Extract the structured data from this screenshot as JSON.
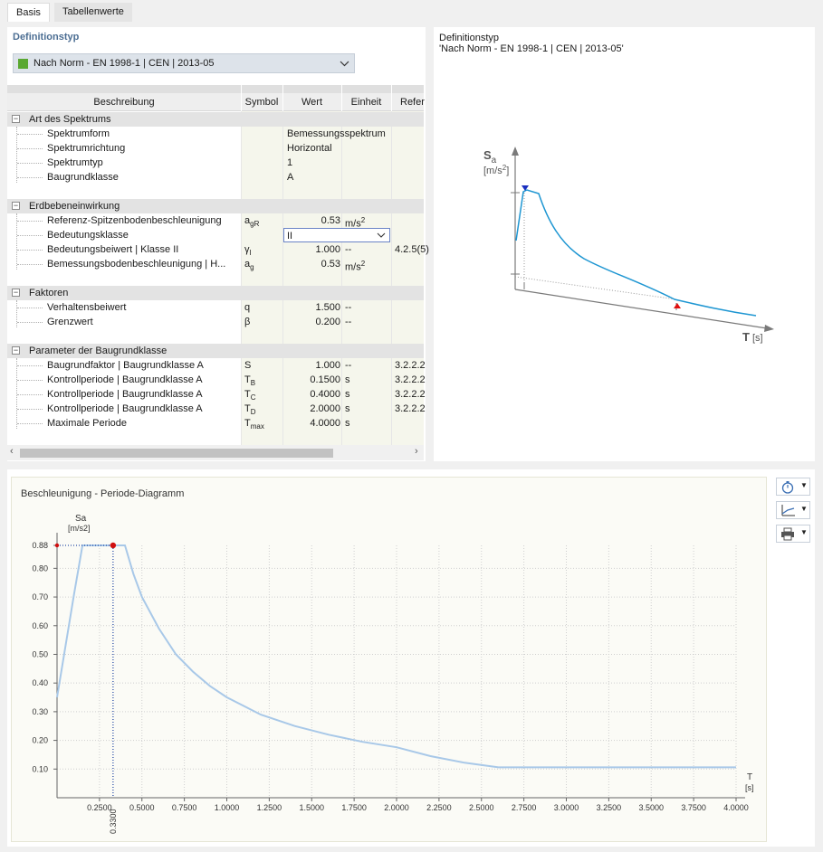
{
  "tabs": [
    {
      "label": "Basis"
    },
    {
      "label": "Tabellenwerte"
    }
  ],
  "left": {
    "title": "Definitionstyp",
    "dropdown_value": "Nach Norm - EN 1998-1 | CEN | 2013-05",
    "columns": {
      "desc": "Beschreibung",
      "sym": "Symbol",
      "val": "Wert",
      "unit": "Einheit",
      "ref": "Refer"
    },
    "groups": {
      "art": "Art des Spektrums",
      "erd": "Erdbebeneinwirkung",
      "fak": "Faktoren",
      "par": "Parameter der Baugrundklasse"
    },
    "rows": {
      "r1": {
        "desc": "Spektrumform",
        "val": "Bemessungsspektrum"
      },
      "r2": {
        "desc": "Spektrumrichtung",
        "val": "Horizontal"
      },
      "r3": {
        "desc": "Spektrumtyp",
        "val": "1"
      },
      "r4": {
        "desc": "Baugrundklasse",
        "val": "A"
      },
      "r5": {
        "desc": "Referenz-Spitzenbodenbeschleunigung",
        "sym": "a",
        "sym_sub": "gR",
        "val": "0.53",
        "unit": "m/s",
        "unit_sup": "2"
      },
      "r6": {
        "desc": "Bedeutungsklasse",
        "val": "II"
      },
      "r7": {
        "desc": "Bedeutungsbeiwert | Klasse II",
        "sym": "γ",
        "sym_sub": "I",
        "val": "1.000",
        "unit": "--",
        "ref": "4.2.5(5)"
      },
      "r8": {
        "desc": "Bemessungsbodenbeschleunigung | H...",
        "sym": "a",
        "sym_sub": "g",
        "val": "0.53",
        "unit": "m/s",
        "unit_sup": "2"
      },
      "r9": {
        "desc": "Verhaltensbeiwert",
        "sym": "q",
        "val": "1.500",
        "unit": "--"
      },
      "r10": {
        "desc": "Grenzwert",
        "sym": "β",
        "val": "0.200",
        "unit": "--"
      },
      "r11": {
        "desc": "Baugrundfaktor | Baugrundklasse A",
        "sym": "S",
        "val": "1.000",
        "unit": "--",
        "ref": "3.2.2.2"
      },
      "r12": {
        "desc": "Kontrollperiode | Baugrundklasse A",
        "sym": "T",
        "sym_sub": "B",
        "val": "0.1500",
        "unit": "s",
        "ref": "3.2.2.2"
      },
      "r13": {
        "desc": "Kontrollperiode | Baugrundklasse A",
        "sym": "T",
        "sym_sub": "C",
        "val": "0.4000",
        "unit": "s",
        "ref": "3.2.2.2"
      },
      "r14": {
        "desc": "Kontrollperiode | Baugrundklasse A",
        "sym": "T",
        "sym_sub": "D",
        "val": "2.0000",
        "unit": "s",
        "ref": "3.2.2.2"
      },
      "r15": {
        "desc": "Maximale Periode",
        "sym": "T",
        "sym_sub": "max",
        "val": "4.0000",
        "unit": "s"
      }
    }
  },
  "right": {
    "title": "Definitionstyp",
    "subtitle": "'Nach Norm - EN 1998-1 | CEN | 2013-05'",
    "sa_label": "S",
    "sa_sub": "a",
    "sa_unit": "[m/s",
    "sa_unit_sup": "2",
    "sa_unit_close": "]",
    "t_label": "T",
    "t_unit": "[s]",
    "accent": "#1e96d2"
  },
  "bottom": {
    "title": "Beschleunigung - Periode-Diagramm"
  },
  "chart_data": {
    "type": "line",
    "title": "Beschleunigung - Periode-Diagramm",
    "ylabel": "Sa",
    "yunit": "[m/s2]",
    "xlabel": "T",
    "xunit": "[s]",
    "xlim": [
      0,
      4.0
    ],
    "ylim": [
      0,
      0.88
    ],
    "xticks": [
      "0.2500",
      "0.5000",
      "0.7500",
      "1.0000",
      "1.2500",
      "1.5000",
      "1.7500",
      "2.0000",
      "2.2500",
      "2.5000",
      "2.7500",
      "3.0000",
      "3.2500",
      "3.5000",
      "3.7500",
      "4.0000"
    ],
    "xtick_values": [
      0.25,
      0.5,
      0.75,
      1.0,
      1.25,
      1.5,
      1.75,
      2.0,
      2.25,
      2.5,
      2.75,
      3.0,
      3.25,
      3.5,
      3.75,
      4.0
    ],
    "yticks": [
      "0.10",
      "0.20",
      "0.30",
      "0.40",
      "0.50",
      "0.60",
      "0.70",
      "0.80",
      "0.88"
    ],
    "ytick_values": [
      0.1,
      0.2,
      0.3,
      0.4,
      0.5,
      0.6,
      0.7,
      0.8,
      0.88
    ],
    "marker_x_label": "0.3300",
    "marker": {
      "x": 0.33,
      "y": 0.88
    },
    "grid": true,
    "series": [
      {
        "x": [
          0,
          0.05,
          0.1,
          0.15,
          0.2,
          0.25,
          0.3,
          0.35,
          0.4,
          0.45,
          0.5,
          0.6,
          0.7,
          0.8,
          0.9,
          1.0,
          1.2,
          1.4,
          1.6,
          1.8,
          2.0,
          2.2,
          2.4,
          2.6,
          2.8,
          3.0,
          3.2,
          3.4,
          3.6,
          3.8,
          4.0
        ],
        "values": [
          0.35,
          0.53,
          0.71,
          0.88,
          0.88,
          0.88,
          0.88,
          0.88,
          0.88,
          0.78,
          0.7,
          0.59,
          0.5,
          0.44,
          0.39,
          0.35,
          0.29,
          0.25,
          0.22,
          0.195,
          0.176,
          0.145,
          0.122,
          0.106,
          0.106,
          0.106,
          0.106,
          0.106,
          0.106,
          0.106,
          0.106
        ],
        "color": "#a8c8e8"
      }
    ]
  }
}
